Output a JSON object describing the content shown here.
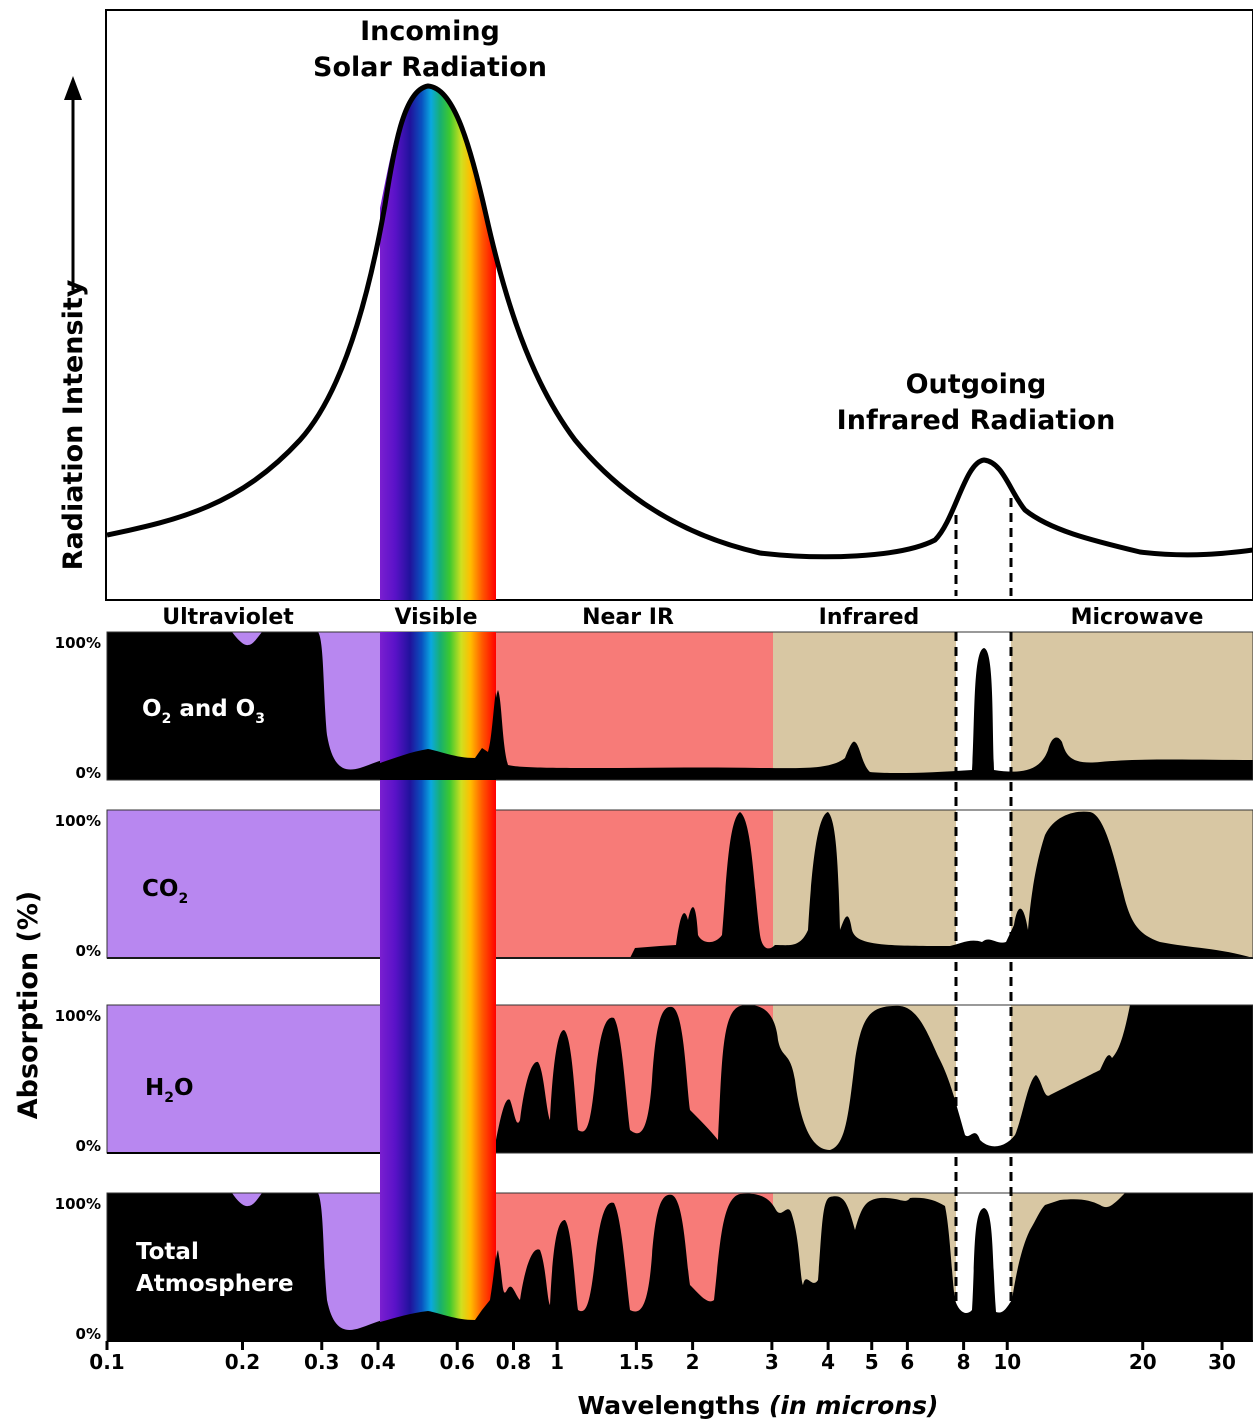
{
  "top_panel": {
    "ylabel": "Radiation Intensity",
    "solar_title": [
      "Incoming",
      "Solar Radiation"
    ],
    "ir_title": [
      "Outgoing",
      "Infrared Radiation"
    ]
  },
  "regions": [
    "Ultraviolet",
    "Visible",
    "Near IR",
    "Infrared",
    "Microwave"
  ],
  "absorption_ylabel": "Absorption (%)",
  "tick_100": "100%",
  "tick_0": "0%",
  "panels": {
    "o2o3": {
      "name": "O2 and O3",
      "base1": "O",
      "sub1": "2",
      "mid": " and O",
      "sub2": "3"
    },
    "co2": {
      "name": "CO2",
      "base": "CO",
      "sub": "2"
    },
    "h2o": {
      "name": "H2O",
      "base": "H",
      "sub": "2",
      "tail": "O"
    },
    "total": {
      "line1": "Total",
      "line2": "Atmosphere"
    }
  },
  "x_axis": {
    "ticks": [
      "0.1",
      "0.2",
      "0.3",
      "0.4",
      "0.6",
      "0.8",
      "1",
      "1.5",
      "2",
      "3",
      "4",
      "5",
      "6",
      "8",
      "10",
      "20",
      "30"
    ],
    "label": "Wavelengths",
    "label_italic": "(in microns)"
  },
  "colors": {
    "ultraviolet": "#b887f0",
    "near_ir": "#f77b78",
    "infrared": "#d8c7a3",
    "spectrum": [
      "#7a1fd0",
      "#3b10c8",
      "#1428b0",
      "#0aa0e0",
      "#1fb060",
      "#4ecb2a",
      "#d9e020",
      "#ffb000",
      "#ff4000",
      "#ff0000"
    ]
  }
}
